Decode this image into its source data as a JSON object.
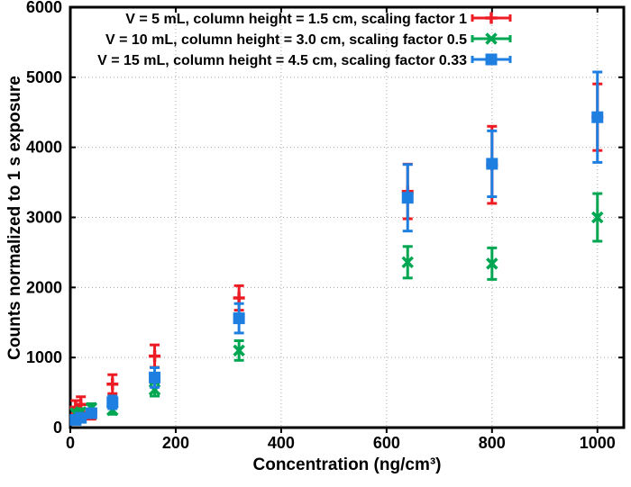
{
  "figure_title": "Scaled counts vs concentration scatter plot",
  "chart_data": {
    "type": "scatter",
    "title": "",
    "xlabel": "Concentration (ng/cm³)",
    "ylabel": "Counts normalized to 1 s exposure",
    "xlim": [
      0,
      1050
    ],
    "ylim": [
      0,
      6000
    ],
    "x_ticks": [
      0,
      200,
      400,
      600,
      800,
      1000
    ],
    "y_ticks": [
      0,
      1000,
      2000,
      3000,
      4000,
      5000,
      6000
    ],
    "grid": true,
    "legend_position": "top-center-inside",
    "x": [
      10,
      20,
      40,
      80,
      160,
      320,
      640,
      800,
      1000
    ],
    "series": [
      {
        "name": "V = 5 mL, column height = 1.5 cm, scaling factor 1",
        "color": "#ed1c24",
        "marker": "plus",
        "values": [
          290,
          330,
          230,
          620,
          1020,
          1850,
          3370,
          3750,
          4430
        ],
        "errors": [
          95,
          110,
          110,
          135,
          160,
          175,
          390,
          550,
          475
        ]
      },
      {
        "name": "V = 10 mL, column height = 3.0 cm, scaling factor 0.5",
        "color": "#00a651",
        "marker": "x",
        "values": [
          205,
          220,
          280,
          250,
          540,
          1100,
          2360,
          2340,
          3000
        ],
        "errors": [
          45,
          50,
          60,
          60,
          90,
          140,
          225,
          225,
          340
        ]
      },
      {
        "name": "V = 15 mL, column height = 4.5 cm, scaling factor 0.33",
        "color": "#1e7fe1",
        "marker": "square",
        "values": [
          110,
          140,
          205,
          360,
          715,
          1560,
          3280,
          3765,
          4430
        ],
        "errors": [
          40,
          45,
          55,
          90,
          140,
          210,
          475,
          470,
          645
        ]
      }
    ],
    "frame_color": "#000000",
    "grid_color": "#a6a6a6"
  }
}
